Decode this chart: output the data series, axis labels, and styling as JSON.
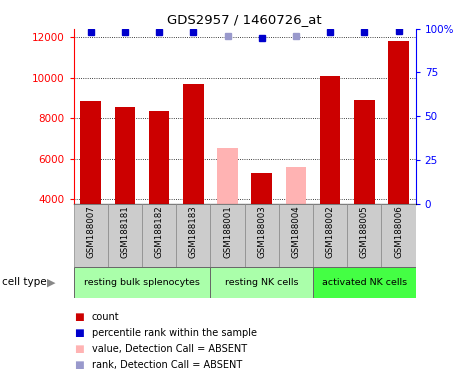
{
  "title": "GDS2957 / 1460726_at",
  "samples": [
    "GSM188007",
    "GSM188181",
    "GSM188182",
    "GSM188183",
    "GSM188001",
    "GSM188003",
    "GSM188004",
    "GSM188002",
    "GSM188005",
    "GSM188006"
  ],
  "counts": [
    8850,
    8550,
    8350,
    9700,
    6550,
    5300,
    5600,
    10100,
    8900,
    11800
  ],
  "absent": [
    false,
    false,
    false,
    false,
    true,
    false,
    true,
    false,
    false,
    false
  ],
  "percentile_ranks": [
    98,
    98,
    98,
    98,
    96,
    95,
    96,
    98,
    98,
    99
  ],
  "absent_ranks": [
    false,
    false,
    false,
    false,
    true,
    false,
    true,
    false,
    false,
    false
  ],
  "ylim_left": [
    3800,
    12400
  ],
  "ylim_right": [
    0,
    100
  ],
  "yticks_left": [
    4000,
    6000,
    8000,
    10000,
    12000
  ],
  "yticks_right": [
    0,
    25,
    50,
    75,
    100
  ],
  "ytick_labels_right": [
    "0",
    "25",
    "50",
    "75",
    "100%"
  ],
  "bar_color_present": "#cc0000",
  "bar_color_absent": "#ffb3b3",
  "dot_color_present": "#0000cc",
  "dot_color_absent": "#9999cc",
  "cell_groups": [
    {
      "label": "resting bulk splenocytes",
      "start": 0,
      "end": 4,
      "color": "#aaffaa"
    },
    {
      "label": "resting NK cells",
      "start": 4,
      "end": 7,
      "color": "#aaffaa"
    },
    {
      "label": "activated NK cells",
      "start": 7,
      "end": 10,
      "color": "#44ff44"
    }
  ],
  "cell_type_label": "cell type",
  "legend_items": [
    {
      "label": "count",
      "color": "#cc0000"
    },
    {
      "label": "percentile rank within the sample",
      "color": "#0000cc"
    },
    {
      "label": "value, Detection Call = ABSENT",
      "color": "#ffb3b3"
    },
    {
      "label": "rank, Detection Call = ABSENT",
      "color": "#9999cc"
    }
  ]
}
